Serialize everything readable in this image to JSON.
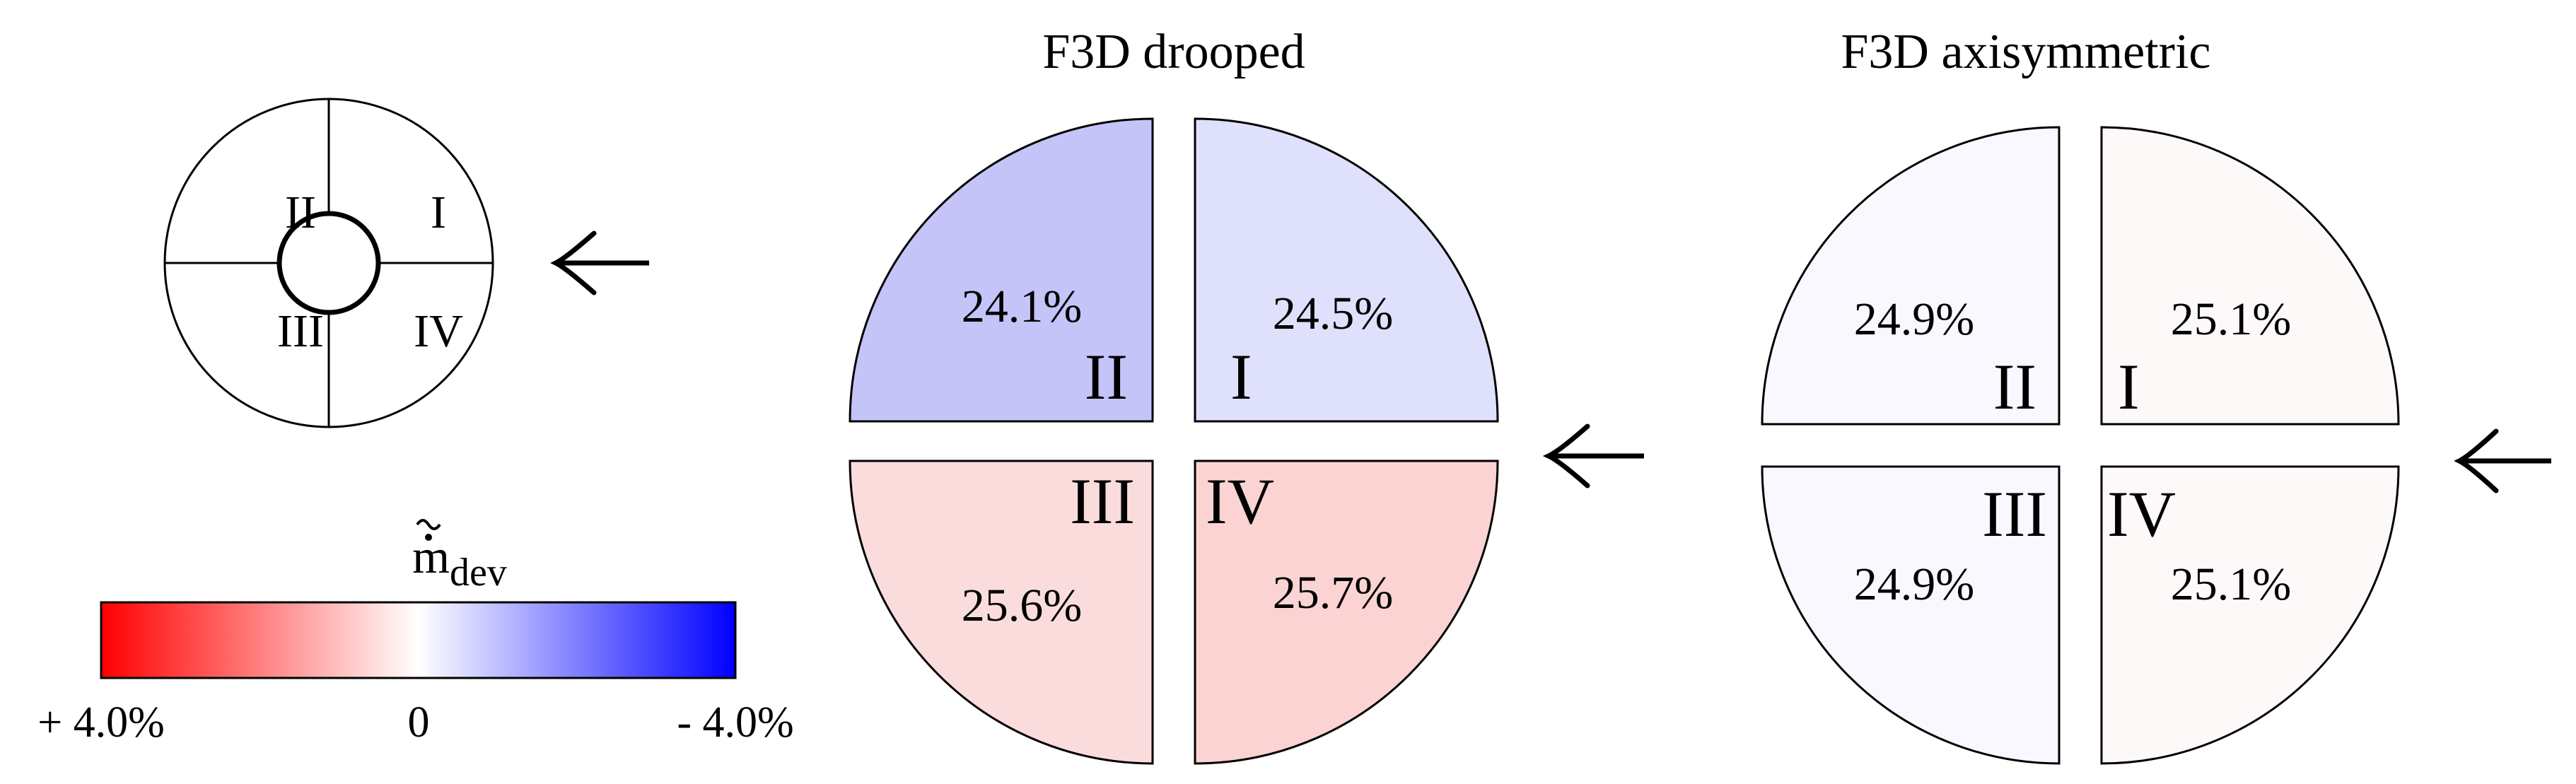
{
  "legend": {
    "key_labels": [
      "I",
      "II",
      "III",
      "IV"
    ],
    "colorbar": {
      "title_base": "m",
      "title_sub": "dev",
      "tick_left": "+ 4.0%",
      "tick_mid": "0",
      "tick_right": "- 4.0%",
      "color_left": "#ff0000",
      "color_mid": "#ffffff",
      "color_right": "#0000ff"
    }
  },
  "panels": [
    {
      "title": "F3D drooped",
      "quadrants": [
        {
          "label": "I",
          "value": "24.5%",
          "color": "#dfe0fb"
        },
        {
          "label": "II",
          "value": "24.1%",
          "color": "#c4c4f8"
        },
        {
          "label": "III",
          "value": "25.6%",
          "color": "#fbdcdc"
        },
        {
          "label": "IV",
          "value": "25.7%",
          "color": "#fbd3d3"
        }
      ]
    },
    {
      "title": "F3D axisymmetric",
      "quadrants": [
        {
          "label": "I",
          "value": "25.1%",
          "color": "#fdf9f9"
        },
        {
          "label": "II",
          "value": "24.9%",
          "color": "#f8f8fe"
        },
        {
          "label": "III",
          "value": "24.9%",
          "color": "#f8f8fe"
        },
        {
          "label": "IV",
          "value": "25.1%",
          "color": "#fdf9f9"
        }
      ]
    }
  ],
  "arrow_icon": "left-arrow-icon"
}
